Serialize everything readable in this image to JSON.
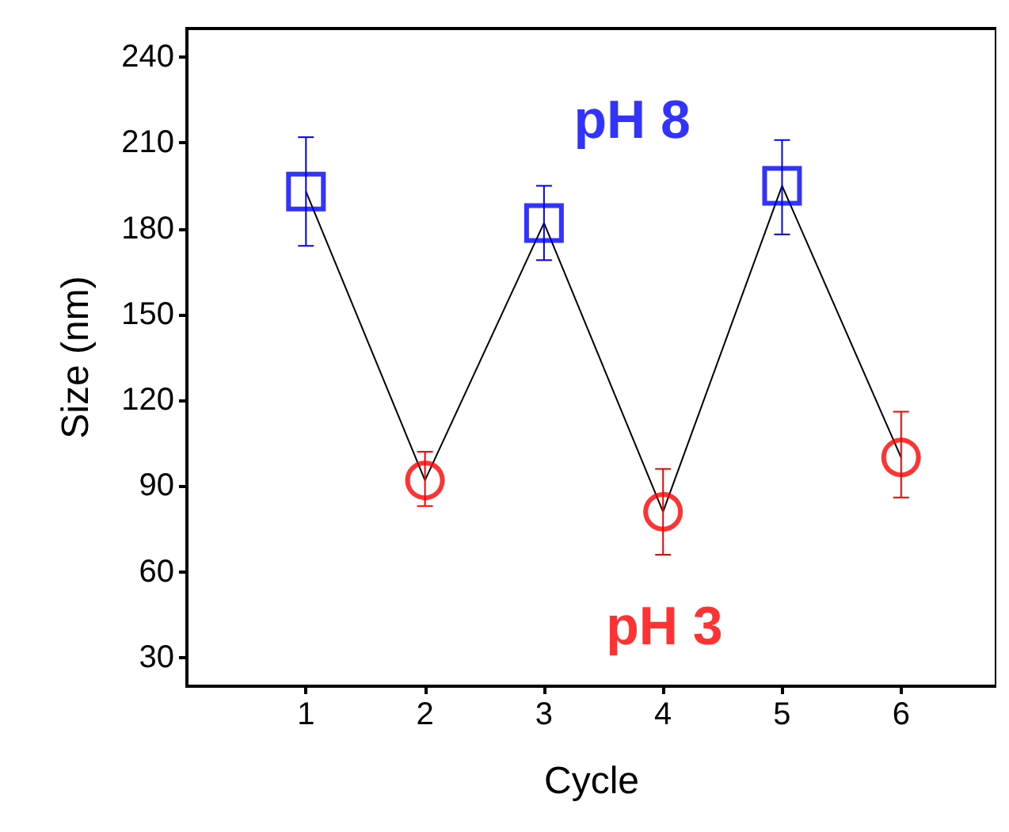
{
  "chart_data": {
    "type": "line",
    "xlabel": "Cycle",
    "ylabel": "Size (nm)",
    "x": [
      1,
      2,
      3,
      4,
      5,
      6
    ],
    "series": [
      {
        "color": "#000000",
        "values": [
          193,
          92,
          182,
          81,
          195,
          100
        ],
        "marker": "none",
        "line_style": "solid"
      },
      {
        "type": "scatter",
        "color": "#0000ff",
        "marker": "square",
        "values": [
          193,
          null,
          182,
          null,
          195,
          null
        ],
        "errors": [
          [
            174,
            212
          ],
          null,
          [
            169,
            195
          ],
          null,
          [
            178,
            211
          ],
          null
        ]
      },
      {
        "type": "scatter",
        "color": "#ff0000",
        "marker": "circle",
        "values": [
          null,
          92,
          null,
          81,
          null,
          100
        ],
        "errors": [
          null,
          [
            83,
            102
          ],
          null,
          [
            66,
            96
          ],
          null,
          [
            86,
            116
          ]
        ]
      }
    ],
    "annotations": [
      "pH 8",
      "pH 3"
    ],
    "xlim": [
      0,
      6.8
    ],
    "ylim": [
      20,
      250
    ],
    "xticks": [
      1,
      2,
      3,
      4,
      5,
      6
    ],
    "yticks": [
      30,
      60,
      90,
      120,
      150,
      180,
      210,
      240
    ],
    "grid": false
  }
}
